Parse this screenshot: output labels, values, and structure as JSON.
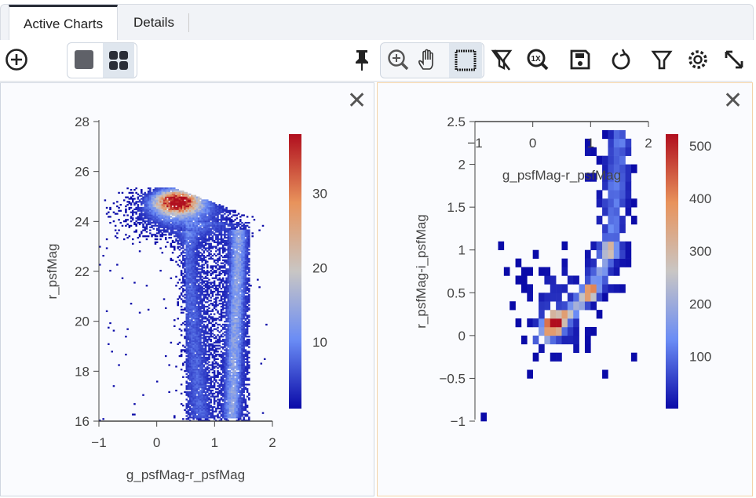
{
  "tabs": [
    {
      "label": "Active Charts",
      "active": true
    },
    {
      "label": "Details",
      "active": false
    }
  ],
  "toolbar": {
    "left": [
      "add-chart-icon",
      "single-layout-icon",
      "grid-layout-icon"
    ],
    "right": [
      "pin-icon",
      "zoom-icon",
      "pan-icon",
      "select-icon",
      "clear-filter-icon",
      "zoom-1x-icon",
      "save-icon",
      "restore-icon",
      "filter-icon",
      "settings-icon",
      "expand-icon"
    ]
  },
  "colors": {
    "panel_selected_border": "#f3d3a8",
    "low": "#0a0aa8",
    "mid_low": "#6a8cf5",
    "mid": "#c9c6c4",
    "mid_high": "#e8935c",
    "high": "#b00e1e"
  },
  "chart_data": [
    {
      "type": "heatmap",
      "xlabel": "g_psfMag-r_psfMag",
      "ylabel": "r_psfMag",
      "xlim": [
        -1,
        2
      ],
      "ylim": [
        28,
        16
      ],
      "y_reversed": true,
      "xticks": [
        "−1",
        "0",
        "1",
        "2"
      ],
      "xtick_values": [
        -1,
        0,
        1,
        2
      ],
      "yticks": [
        "16",
        "18",
        "20",
        "22",
        "24",
        "26",
        "28"
      ],
      "ytick_values": [
        16,
        18,
        20,
        22,
        24,
        26,
        28
      ],
      "colorbar": {
        "range": [
          1,
          38
        ],
        "ticks": [
          "10",
          "20",
          "30"
        ],
        "tick_values": [
          10,
          20,
          30
        ]
      },
      "bin": [
        0.03,
        0.06
      ],
      "density_model": {
        "peak": [
          0.35,
          24.8
        ],
        "components": [
          {
            "kind": "blob",
            "center": [
              0.35,
              24.8
            ],
            "sigma": [
              0.25,
              0.3
            ],
            "amp": 1.0
          },
          {
            "kind": "blob",
            "center": [
              0.45,
              24.4
            ],
            "sigma": [
              0.5,
              0.6
            ],
            "amp": 0.3
          },
          {
            "kind": "ridge",
            "from": [
              1.3,
              16.2
            ],
            "to": [
              1.42,
              23.6
            ],
            "width": 0.09,
            "amp": 0.3
          },
          {
            "kind": "ridge",
            "from": [
              0.75,
              16.2
            ],
            "to": [
              0.5,
              23.5
            ],
            "width": 0.12,
            "amp": 0.13
          },
          {
            "kind": "box",
            "x": [
              0.5,
              1.6
            ],
            "y": [
              16,
              24
            ],
            "amp": 0.08
          }
        ],
        "mag_limit": {
          "at": [
            0.3,
            25.3
          ],
          "slope": -0.85
        }
      }
    },
    {
      "type": "heatmap",
      "xlabel": "g_psfMag-r_psfMag",
      "ylabel": "r_psfMag-i_psfMag",
      "xlim": [
        -1,
        2
      ],
      "ylim": [
        -1,
        2.5
      ],
      "xticks": [
        "−1",
        "0",
        "1",
        "2"
      ],
      "xtick_values": [
        -1,
        0,
        1,
        2
      ],
      "yticks": [
        "−1",
        "−0.5",
        "0",
        "0.5",
        "1",
        "1.5",
        "2",
        "2.5"
      ],
      "ytick_values": [
        -1,
        -0.5,
        0,
        0.5,
        1,
        1.5,
        2,
        2.5
      ],
      "colorbar": {
        "range": [
          1,
          522
        ],
        "ticks": [
          "100",
          "200",
          "300",
          "400",
          "500"
        ],
        "tick_values": [
          100,
          200,
          300,
          400,
          500
        ]
      },
      "bin": [
        0.1,
        0.1
      ],
      "density_model": {
        "components": [
          {
            "kind": "blob",
            "center": [
              0.38,
              0.15
            ],
            "sigma": [
              0.12,
              0.08
            ],
            "amp": 1.0
          },
          {
            "kind": "ridge",
            "from": [
              0.2,
              0.0
            ],
            "to": [
              1.0,
              0.5
            ],
            "width": 0.1,
            "amp": 0.45
          },
          {
            "kind": "ridge",
            "from": [
              1.0,
              0.5
            ],
            "to": [
              1.35,
              1.0
            ],
            "width": 0.1,
            "amp": 0.3
          },
          {
            "kind": "ridge",
            "from": [
              1.35,
              1.0
            ],
            "to": [
              1.5,
              2.3
            ],
            "width": 0.12,
            "amp": 0.2
          },
          {
            "kind": "blob",
            "center": [
              0.45,
              0.3
            ],
            "sigma": [
              0.45,
              0.4
            ],
            "amp": 0.12
          },
          {
            "kind": "box",
            "x": [
              0.9,
              1.7
            ],
            "y": [
              0.5,
              2.3
            ],
            "amp": 0.05
          }
        ]
      }
    }
  ]
}
